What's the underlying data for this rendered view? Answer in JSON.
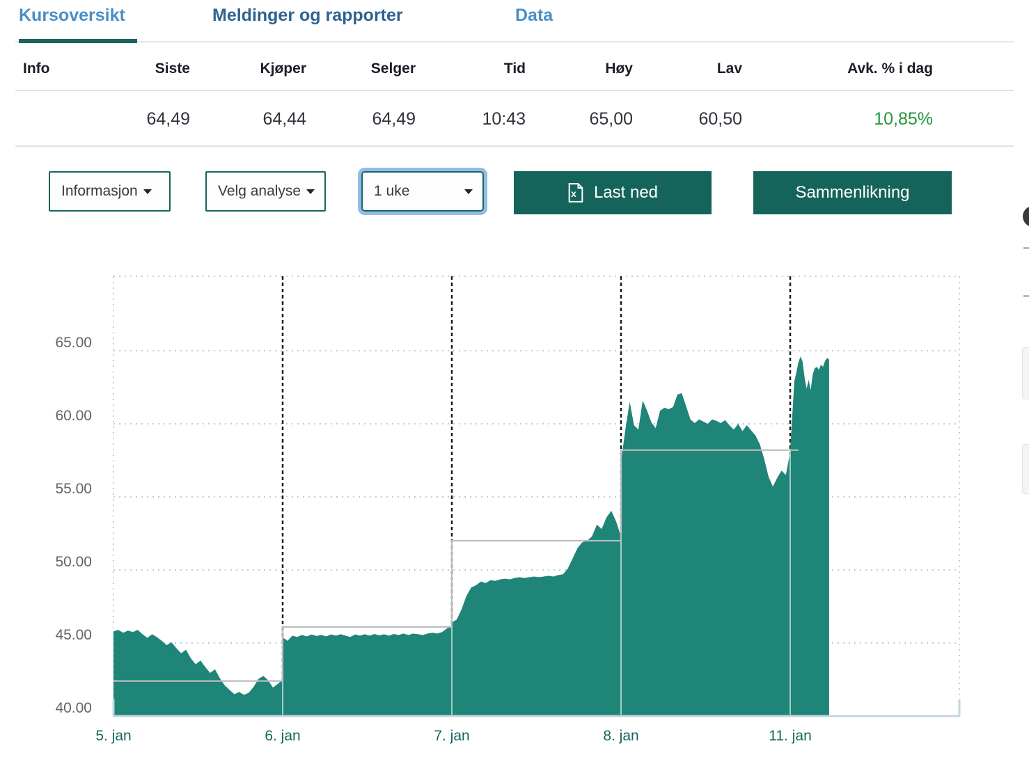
{
  "tabs": {
    "items": [
      {
        "label": "Kursoversikt",
        "active": true
      },
      {
        "label": "Meldinger og rapporter",
        "active": false
      },
      {
        "label": "Data",
        "active": false
      }
    ]
  },
  "quote_table": {
    "headers": [
      "Info",
      "Siste",
      "Kjøper",
      "Selger",
      "Tid",
      "Høy",
      "Lav",
      "Avk. % i dag"
    ],
    "row": [
      "",
      "64,49",
      "64,44",
      "64,49",
      "10:43",
      "65,00",
      "60,50",
      "10,85%"
    ],
    "positive_change": true
  },
  "controls": {
    "dropdowns": [
      {
        "label": "Informasjon"
      },
      {
        "label": "Velg analyse"
      },
      {
        "label": "1 uke",
        "focused": true
      }
    ],
    "download_button": {
      "label": "Last ned",
      "icon": "excel-file"
    },
    "compare_button": {
      "label": "Sammenlikning"
    }
  },
  "chart_data": {
    "type": "area",
    "title": "",
    "xlabel": "",
    "ylabel": "",
    "ylim": [
      40,
      70
    ],
    "grid": true,
    "legend": "none",
    "y_ticks": [
      {
        "value": 40,
        "label": "40.00"
      },
      {
        "value": 45,
        "label": "45.00"
      },
      {
        "value": 50,
        "label": "50.00"
      },
      {
        "value": 55,
        "label": "55.00"
      },
      {
        "value": 60,
        "label": "60.00"
      },
      {
        "value": 65,
        "label": "65.00"
      }
    ],
    "days": [
      {
        "label": "5. jan",
        "ref_level": 42.4,
        "values": [
          45.8,
          45.9,
          45.7,
          45.85,
          45.75,
          45.9,
          45.6,
          45.35,
          45.6,
          45.4,
          45.15,
          44.85,
          45.05,
          44.65,
          44.3,
          44.55,
          43.95,
          43.55,
          43.8,
          43.35,
          42.95,
          43.2,
          42.6,
          42.1,
          41.8,
          41.5,
          41.65,
          41.45,
          41.6,
          42.0,
          42.55,
          42.75,
          42.45,
          41.95,
          42.2,
          42.5
        ]
      },
      {
        "label": "6. jan",
        "ref_level": 46.1,
        "values": [
          45.4,
          45.15,
          45.5,
          45.42,
          45.55,
          45.45,
          45.58,
          45.48,
          45.55,
          45.45,
          45.58,
          45.5,
          45.6,
          45.5,
          45.42,
          45.58,
          45.5,
          45.6,
          45.5,
          45.62,
          45.52,
          45.6,
          45.5,
          45.62,
          45.55,
          45.65,
          45.55,
          45.65,
          45.6,
          45.55,
          45.65,
          45.7,
          45.65,
          45.75,
          46.0,
          46.2
        ]
      },
      {
        "label": "7. jan",
        "ref_level": 52.0,
        "values": [
          46.4,
          46.6,
          47.3,
          48.2,
          48.8,
          48.95,
          49.2,
          49.1,
          49.3,
          49.25,
          49.35,
          49.4,
          49.35,
          49.45,
          49.5,
          49.45,
          49.5,
          49.55,
          49.5,
          49.55,
          49.6,
          49.55,
          49.65,
          49.7,
          50.1,
          50.8,
          51.5,
          51.9,
          52.0,
          52.3,
          53.1,
          52.8,
          53.6,
          54.05,
          53.3,
          52.3
        ]
      },
      {
        "label": "8. jan",
        "ref_level": 58.2,
        "values": [
          57.4,
          59.6,
          61.5,
          59.9,
          59.6,
          61.6,
          60.9,
          60.1,
          59.7,
          60.9,
          61.1,
          61.0,
          61.15,
          62.0,
          62.1,
          61.2,
          60.3,
          60.05,
          60.3,
          60.15,
          60.0,
          60.3,
          60.2,
          60.05,
          60.25,
          59.9,
          59.6,
          60.0,
          59.5,
          59.9,
          59.55,
          59.2,
          58.6,
          57.6,
          56.4,
          55.7,
          56.3,
          56.8,
          56.5,
          58.1
        ]
      },
      {
        "label": "11. jan",
        "ref_level": 58.2,
        "partial": 0.23,
        "values": [
          58.2,
          60.5,
          62.9,
          63.5,
          64.2,
          64.6,
          64.3,
          63.2,
          62.4,
          63.0,
          62.3,
          63.4,
          63.8,
          63.9,
          63.7,
          64.05,
          63.9,
          64.3,
          64.5,
          64.4
        ]
      }
    ],
    "colors": {
      "area_fill": "#1e8578",
      "grid_dotted": "#b7d0e4",
      "day_divider_dashed": "#1b1b1b",
      "reference_line": "#bdbdbd",
      "baseline": "#c5d5e2",
      "x_tick_text": "#15665c",
      "y_tick_text": "#636363"
    }
  },
  "theme": {
    "accent_teal": "#15645b",
    "tab_active_blue": "#4a8fc5",
    "tab_dark_blue": "#2f6390",
    "positive_green": "#24963c",
    "focus_ring_blue": "#93bbe9"
  }
}
